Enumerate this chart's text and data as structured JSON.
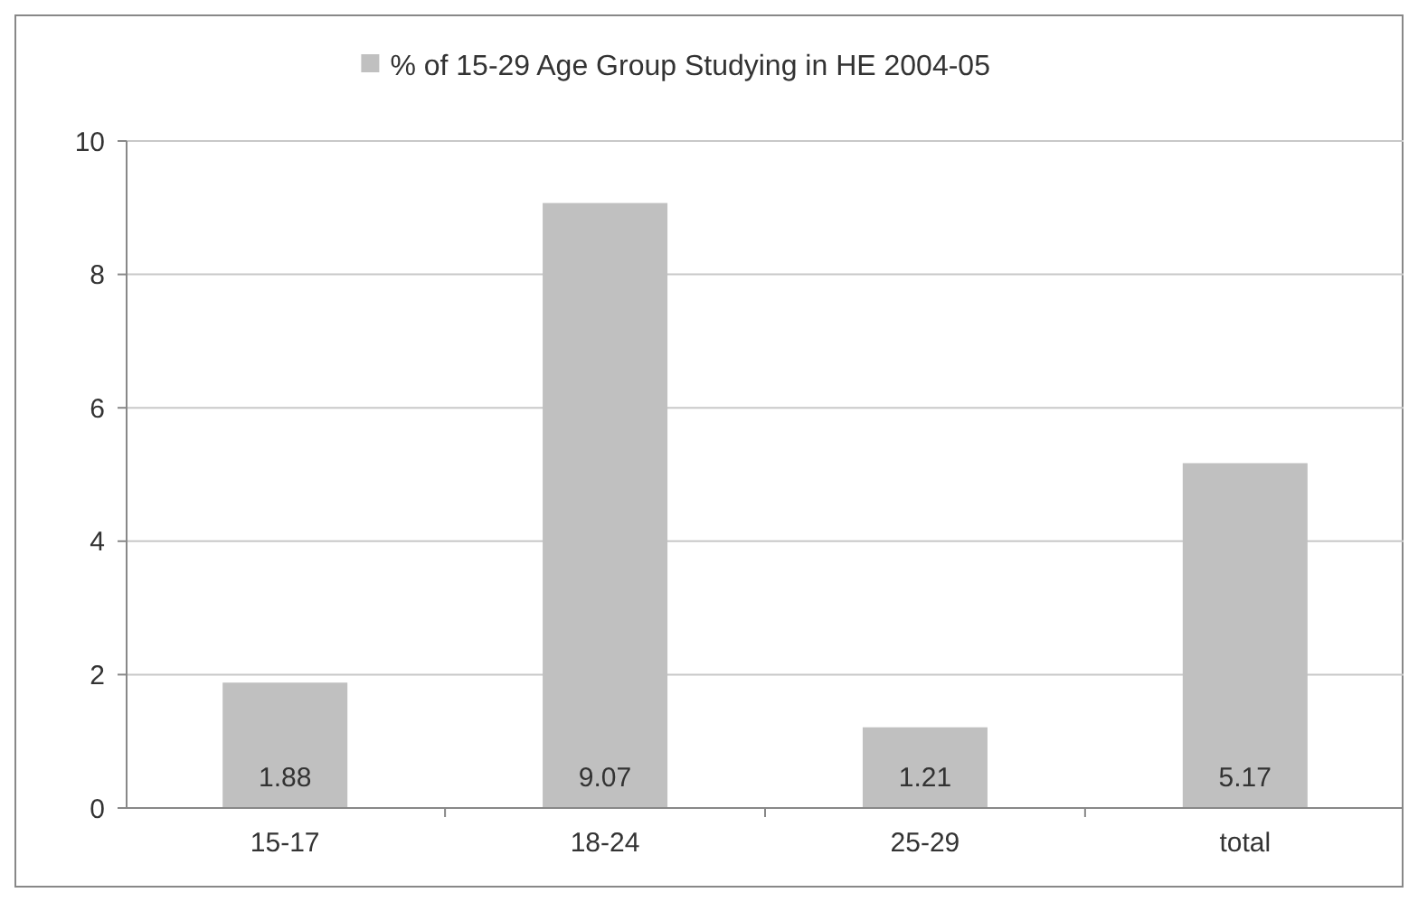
{
  "chart_data": {
    "type": "bar",
    "categories": [
      "15-17",
      "18-24",
      "25-29",
      "total"
    ],
    "series": [
      {
        "name": "% of 15-29 Age Group Studying in HE 2004-05",
        "color": "#c0c0c0",
        "values": [
          1.88,
          9.07,
          1.21,
          5.17
        ]
      }
    ],
    "ylim": [
      0,
      10
    ],
    "yticks": [
      0,
      2,
      4,
      6,
      8,
      10
    ],
    "grid": "y",
    "legend": "top",
    "data_labels": true
  }
}
